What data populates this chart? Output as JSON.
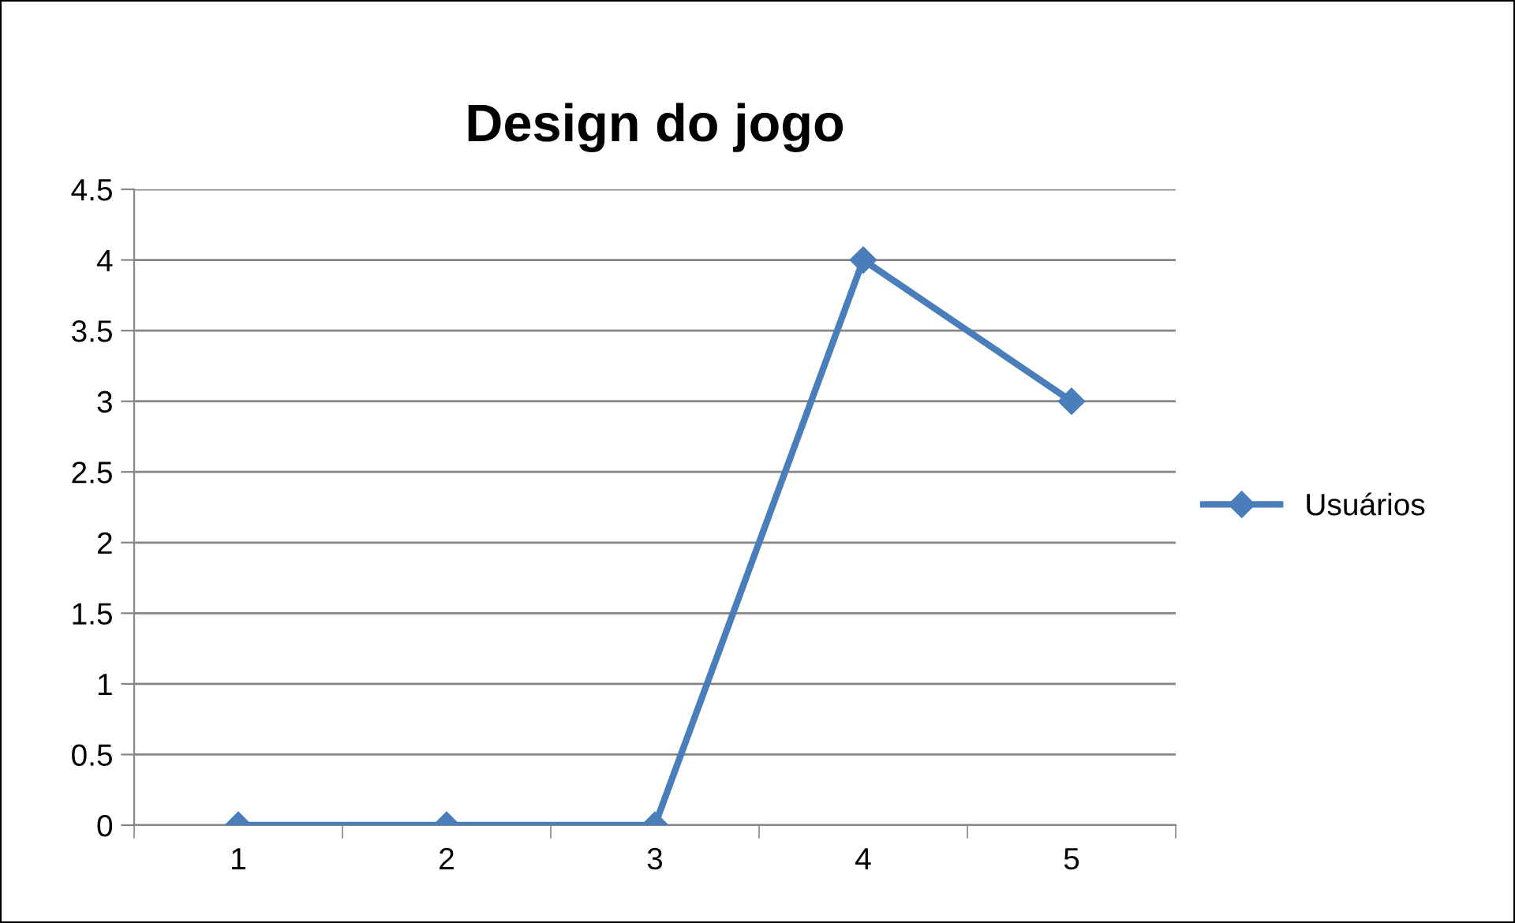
{
  "chart_data": {
    "type": "line",
    "title": "Design do jogo",
    "categories": [
      "1",
      "2",
      "3",
      "4",
      "5"
    ],
    "series": [
      {
        "name": "Usuários",
        "color": "#4a7ebb",
        "values": [
          0,
          0,
          0,
          4,
          3
        ]
      }
    ],
    "ylim": [
      0,
      4.5
    ],
    "yticks": [
      0,
      0.5,
      1,
      1.5,
      2,
      2.5,
      3,
      3.5,
      4,
      4.5
    ],
    "grid": "y",
    "legend": "right",
    "marker": "diamond",
    "line_style": "solid"
  }
}
